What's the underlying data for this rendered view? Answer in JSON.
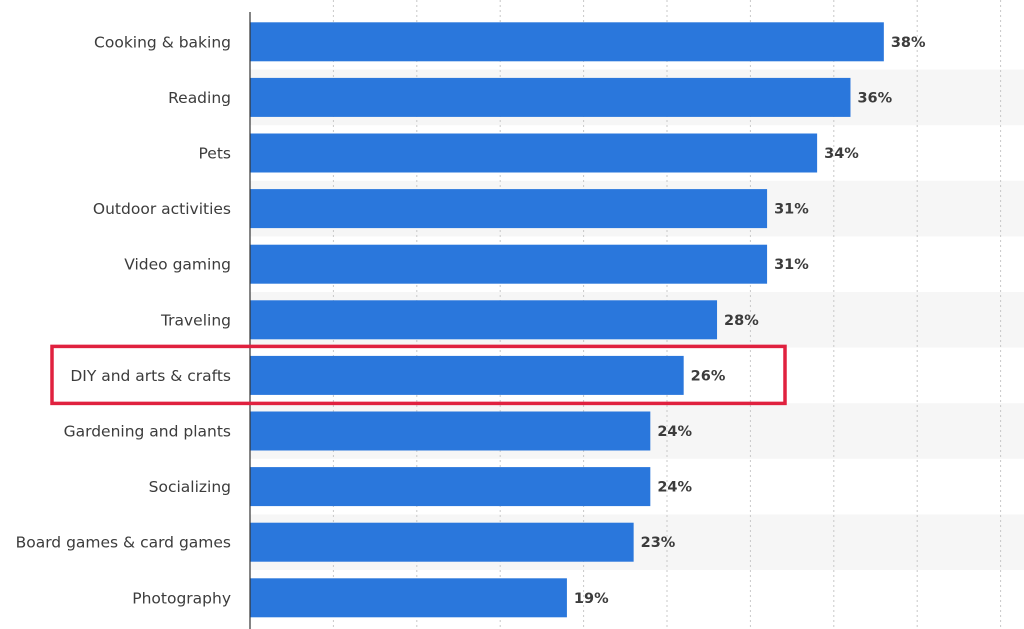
{
  "chart_data": {
    "type": "bar",
    "orientation": "horizontal",
    "categories": [
      "Cooking & baking",
      "Reading",
      "Pets",
      "Outdoor activities",
      "Video gaming",
      "Traveling",
      "DIY and arts & crafts",
      "Gardening and plants",
      "Socializing",
      "Board games & card games",
      "Photography"
    ],
    "values": [
      38,
      36,
      34,
      31,
      31,
      28,
      26,
      24,
      24,
      23,
      19
    ],
    "value_labels": [
      "38%",
      "36%",
      "34%",
      "31%",
      "31%",
      "28%",
      "26%",
      "24%",
      "24%",
      "23%",
      "19%"
    ],
    "xlim": [
      0,
      45
    ],
    "grid": true,
    "highlighted_category": "DIY and arts & crafts",
    "colors": {
      "bar": "#2a77dc",
      "highlight_box": "#e0213f",
      "alt_row": "#f6f6f6",
      "grid": "#c8c8c8",
      "axis": "#333333",
      "text": "#3c3c3c"
    }
  }
}
